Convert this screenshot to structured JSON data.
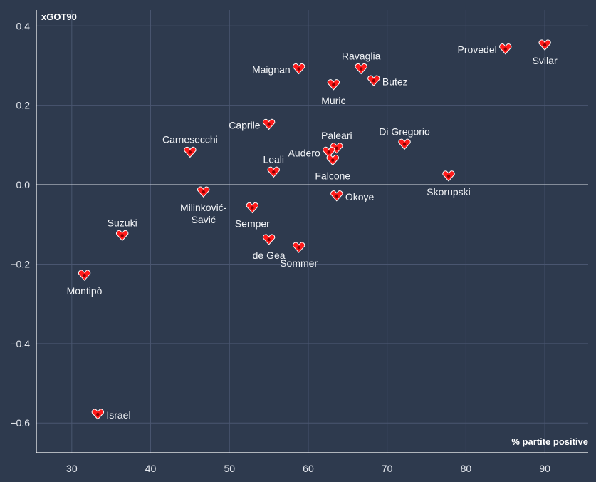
{
  "chart_data": {
    "type": "scatter",
    "title": "",
    "xlabel": "% partite positive",
    "ylabel": "xGOT90",
    "xlim": [
      25.5,
      95.5
    ],
    "ylim": [
      -0.675,
      0.44
    ],
    "xticks": [
      30,
      40,
      50,
      60,
      70,
      80,
      90
    ],
    "yticks": [
      0.4,
      0.2,
      0.0,
      -0.2,
      -0.4,
      -0.6
    ],
    "ytick_labels": [
      "0.4",
      "0.2",
      "0.0",
      "−0.2",
      "−0.4",
      "−0.6"
    ],
    "grid": true,
    "points": [
      {
        "name": "Provedel",
        "x": 85.0,
        "y": 0.34,
        "label_pos": "left"
      },
      {
        "name": "Svilar",
        "x": 90.0,
        "y": 0.35,
        "label_pos": "below"
      },
      {
        "name": "Ravaglia",
        "x": 66.7,
        "y": 0.29,
        "label_pos": "above"
      },
      {
        "name": "Butez",
        "x": 68.3,
        "y": 0.26,
        "label_pos": "right"
      },
      {
        "name": "Maignan",
        "x": 58.8,
        "y": 0.29,
        "label_pos": "left"
      },
      {
        "name": "Muric",
        "x": 63.2,
        "y": 0.25,
        "label_pos": "below"
      },
      {
        "name": "Caprile",
        "x": 55.0,
        "y": 0.15,
        "label_pos": "left"
      },
      {
        "name": "Carnesecchi",
        "x": 45.0,
        "y": 0.08,
        "label_pos": "above"
      },
      {
        "name": "Paleari",
        "x": 63.6,
        "y": 0.09,
        "label_pos": "above"
      },
      {
        "name": "Audero",
        "x": 62.6,
        "y": 0.08,
        "label_pos": "left"
      },
      {
        "name": "Falcone",
        "x": 63.1,
        "y": 0.06,
        "label_pos": "below"
      },
      {
        "name": "Di Gregorio",
        "x": 72.2,
        "y": 0.1,
        "label_pos": "above"
      },
      {
        "name": "Leali",
        "x": 55.6,
        "y": 0.03,
        "label_pos": "above"
      },
      {
        "name": "Skorupski",
        "x": 77.8,
        "y": 0.02,
        "label_pos": "below"
      },
      {
        "name": "Okoye",
        "x": 63.6,
        "y": -0.03,
        "label_pos": "right"
      },
      {
        "name": "Milinković-Savić",
        "x": 46.7,
        "y": -0.02,
        "label_pos": "below2"
      },
      {
        "name": "Semper",
        "x": 52.9,
        "y": -0.06,
        "label_pos": "below"
      },
      {
        "name": "Suzuki",
        "x": 36.4,
        "y": -0.13,
        "label_pos": "above"
      },
      {
        "name": "de Gea",
        "x": 55.0,
        "y": -0.14,
        "label_pos": "below"
      },
      {
        "name": "Sommer",
        "x": 58.8,
        "y": -0.16,
        "label_pos": "below"
      },
      {
        "name": "Montipò",
        "x": 31.6,
        "y": -0.23,
        "label_pos": "below"
      },
      {
        "name": "Israel",
        "x": 33.3,
        "y": -0.58,
        "label_pos": "right"
      }
    ]
  },
  "colors": {
    "background": "#2e3a4e",
    "marker": "#ff1a1a",
    "grid": "#4a5670"
  }
}
